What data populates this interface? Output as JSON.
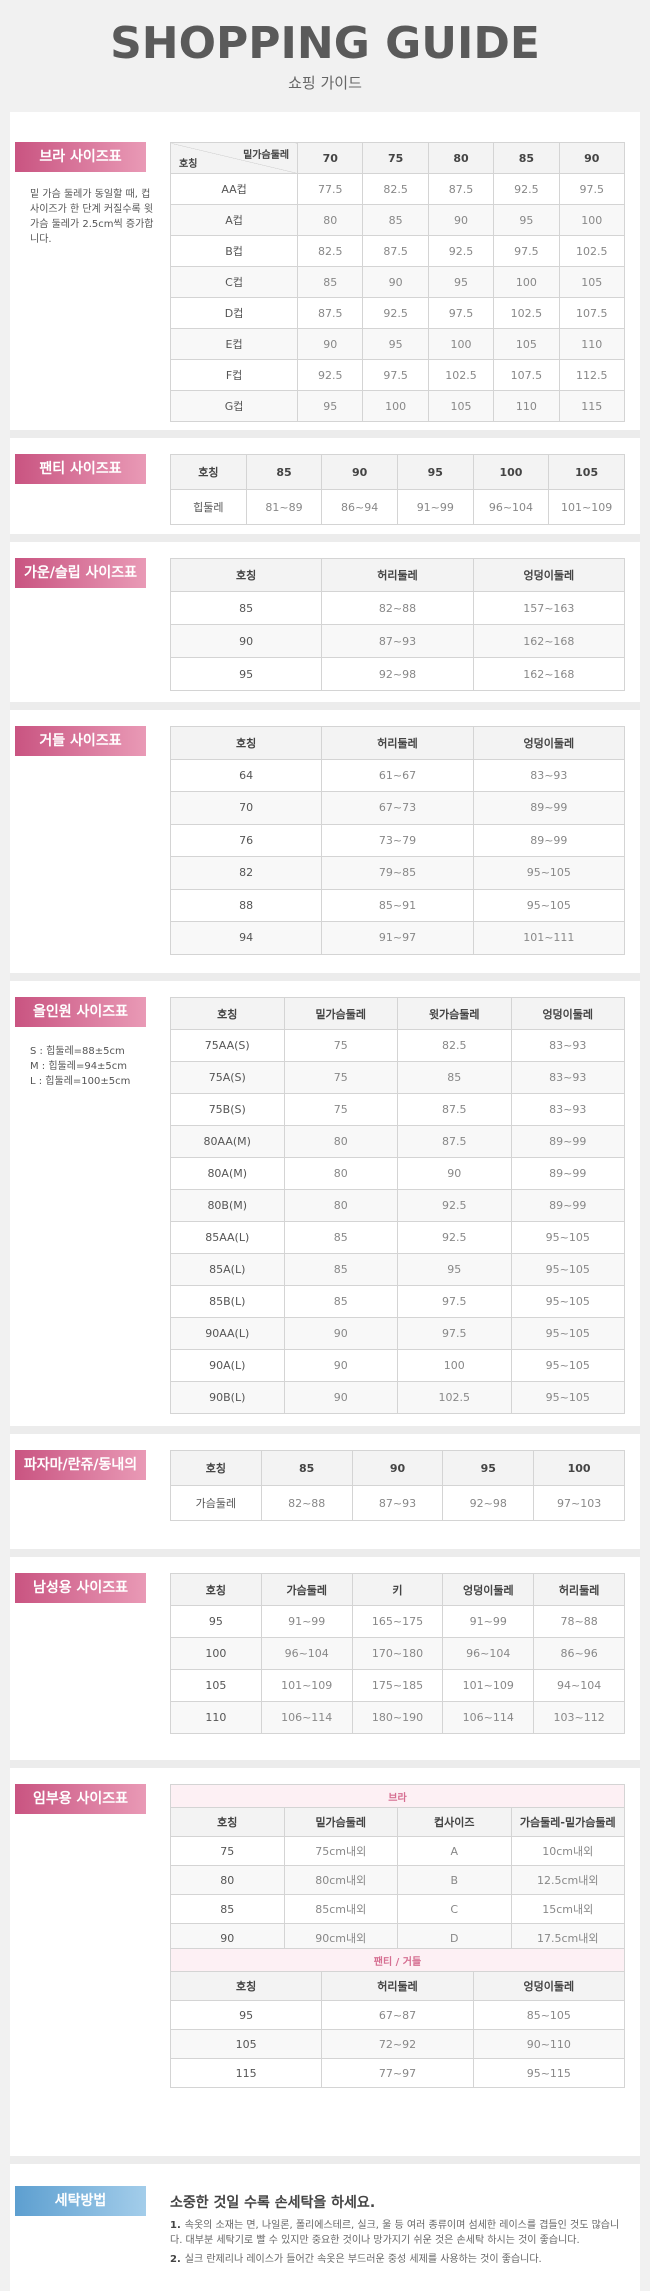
{
  "header": {
    "title": "SHOPPING GUIDE",
    "subtitle": "쇼핑 가이드"
  },
  "sections": [
    {
      "label": "브라 사이즈표",
      "notes": [
        "밑 가슴 둘레가 동일할 때, 컵 사이즈가 한 단계 커질수록 윗 가슴 둘레가 2.5cm씩 증가합니다."
      ],
      "tables": [
        {
          "corner": {
            "col_label": "밑가슴둘레",
            "row_label": "호칭"
          },
          "header": [
            "70",
            "75",
            "80",
            "85",
            "90"
          ],
          "rows": [
            [
              "AA컵",
              "77.5",
              "82.5",
              "87.5",
              "92.5",
              "97.5"
            ],
            [
              "A컵",
              "80",
              "85",
              "90",
              "95",
              "100"
            ],
            [
              "B컵",
              "82.5",
              "87.5",
              "92.5",
              "97.5",
              "102.5"
            ],
            [
              "C컵",
              "85",
              "90",
              "95",
              "100",
              "105"
            ],
            [
              "D컵",
              "87.5",
              "92.5",
              "97.5",
              "102.5",
              "107.5"
            ],
            [
              "E컵",
              "90",
              "95",
              "100",
              "105",
              "110"
            ],
            [
              "F컵",
              "92.5",
              "97.5",
              "102.5",
              "107.5",
              "112.5"
            ],
            [
              "G컵",
              "95",
              "100",
              "105",
              "110",
              "115"
            ]
          ]
        }
      ]
    },
    {
      "label": "팬티 사이즈표",
      "tables": [
        {
          "header": [
            "호칭",
            "85",
            "90",
            "95",
            "100",
            "105"
          ],
          "rows": [
            [
              "힙둘레",
              "81~89",
              "86~94",
              "91~99",
              "96~104",
              "101~109"
            ]
          ]
        }
      ]
    },
    {
      "label": "가운/슬립 사이즈표",
      "tables": [
        {
          "header": [
            "호칭",
            "허리둘레",
            "엉덩이둘레"
          ],
          "rows": [
            [
              "85",
              "82~88",
              "157~163"
            ],
            [
              "90",
              "87~93",
              "162~168"
            ],
            [
              "95",
              "92~98",
              "162~168"
            ]
          ]
        }
      ]
    },
    {
      "label": "거들 사이즈표",
      "tables": [
        {
          "header": [
            "호칭",
            "허리둘레",
            "엉덩이둘레"
          ],
          "rows": [
            [
              "64",
              "61~67",
              "83~93"
            ],
            [
              "70",
              "67~73",
              "89~99"
            ],
            [
              "76",
              "73~79",
              "89~99"
            ],
            [
              "82",
              "79~85",
              "95~105"
            ],
            [
              "88",
              "85~91",
              "95~105"
            ],
            [
              "94",
              "91~97",
              "101~111"
            ]
          ]
        }
      ]
    },
    {
      "label": "올인원 사이즈표",
      "notes": [
        "S : 힙둘레=88±5cm",
        "M : 힙둘레=94±5cm",
        "L : 힙둘레=100±5cm"
      ],
      "tables": [
        {
          "header": [
            "호칭",
            "밑가슴둘레",
            "윗가슴둘레",
            "엉덩이둘레"
          ],
          "rows": [
            [
              "75AA(S)",
              "75",
              "82.5",
              "83~93"
            ],
            [
              "75A(S)",
              "75",
              "85",
              "83~93"
            ],
            [
              "75B(S)",
              "75",
              "87.5",
              "83~93"
            ],
            [
              "80AA(M)",
              "80",
              "87.5",
              "89~99"
            ],
            [
              "80A(M)",
              "80",
              "90",
              "89~99"
            ],
            [
              "80B(M)",
              "80",
              "92.5",
              "89~99"
            ],
            [
              "85AA(L)",
              "85",
              "92.5",
              "95~105"
            ],
            [
              "85A(L)",
              "85",
              "95",
              "95~105"
            ],
            [
              "85B(L)",
              "85",
              "97.5",
              "95~105"
            ],
            [
              "90AA(L)",
              "90",
              "97.5",
              "95~105"
            ],
            [
              "90A(L)",
              "90",
              "100",
              "95~105"
            ],
            [
              "90B(L)",
              "90",
              "102.5",
              "95~105"
            ]
          ]
        }
      ]
    },
    {
      "label": "파자마/란쥬/동내의",
      "tables": [
        {
          "header": [
            "호칭",
            "85",
            "90",
            "95",
            "100"
          ],
          "rows": [
            [
              "가슴둘레",
              "82~88",
              "87~93",
              "92~98",
              "97~103"
            ]
          ]
        }
      ]
    },
    {
      "label": "남성용 사이즈표",
      "tables": [
        {
          "header": [
            "호칭",
            "가슴둘레",
            "키",
            "엉덩이둘레",
            "허리둘레"
          ],
          "rows": [
            [
              "95",
              "91~99",
              "165~175",
              "91~99",
              "78~88"
            ],
            [
              "100",
              "96~104",
              "170~180",
              "96~104",
              "86~96"
            ],
            [
              "105",
              "101~109",
              "175~185",
              "101~109",
              "94~104"
            ],
            [
              "110",
              "106~114",
              "180~190",
              "106~114",
              "103~112"
            ]
          ]
        }
      ]
    },
    {
      "label": "임부용 사이즈표",
      "tables": [
        {
          "caption": "브라",
          "header": [
            "호칭",
            "밑가슴둘레",
            "컵사이즈",
            "가슴둘레-밑가슴둘레"
          ],
          "rows": [
            [
              "75",
              "75cm내외",
              "A",
              "10cm내외"
            ],
            [
              "80",
              "80cm내외",
              "B",
              "12.5cm내외"
            ],
            [
              "85",
              "85cm내외",
              "C",
              "15cm내외"
            ],
            [
              "90",
              "90cm내외",
              "D",
              "17.5cm내외"
            ]
          ]
        },
        {
          "caption": "팬티 / 거들",
          "header": [
            "호칭",
            "허리둘레",
            "엉덩이둘레"
          ],
          "rows": [
            [
              "95",
              "67~87",
              "85~105"
            ],
            [
              "105",
              "72~92",
              "90~110"
            ],
            [
              "115",
              "77~97",
              "95~115"
            ]
          ]
        }
      ]
    }
  ],
  "washing": {
    "label": "세탁방법",
    "title": "소중한 것일 수록 손세탁을 하세요.",
    "items": [
      {
        "number": "1.",
        "text": "속옷의 소재는 면, 나일론, 폴리에스테르, 실크, 울 등 여러 종류이며 섬세한 레이스를 겹들인 것도 많습니다. 대부분 세탁기로 빨 수 있지만 중요한 것이나 망가지기 쉬운 것은 손세탁 하시는 것이 좋습니다."
      },
      {
        "number": "2.",
        "text": "실크 란제리나 레이스가 들어간 속옷은 부드러운 중성 세제를 사용하는 것이 좋습니다."
      }
    ]
  }
}
